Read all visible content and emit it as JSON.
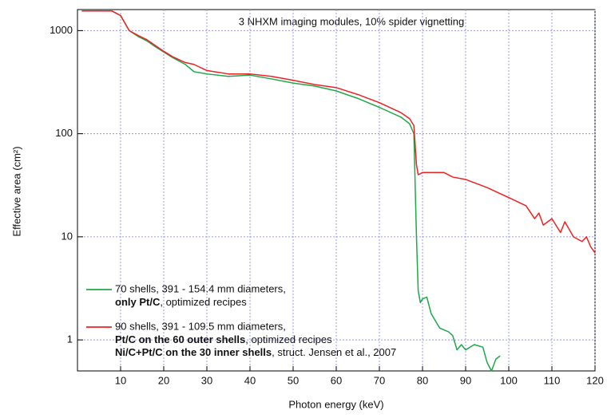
{
  "chart_data": {
    "type": "line",
    "title": "3 NHXM imaging modules, 10% spider vignetting",
    "xlabel": "Photon energy (keV)",
    "ylabel": "Effective area (cm²)",
    "yscale": "log",
    "grid": true,
    "xlim": [
      0,
      120
    ],
    "ylim": [
      0.5,
      1600
    ],
    "xticks": [
      10,
      20,
      30,
      40,
      50,
      60,
      70,
      80,
      90,
      100,
      110,
      120
    ],
    "yticks": [
      1,
      10,
      100,
      1000
    ],
    "legend": "lower left",
    "series": [
      {
        "name": "70 shells, 391 - 154.4 mm diameters,",
        "color": "#1fa84a",
        "notes": [
          [
            {
              "text": "only Pt/C",
              "bold": true
            },
            {
              "text": ", optimized recipes"
            }
          ]
        ],
        "x": [
          1,
          8,
          10,
          12,
          14,
          16,
          18,
          20,
          22,
          25,
          27,
          30,
          35,
          40,
          45,
          50,
          55,
          60,
          65,
          70,
          75,
          77,
          78,
          78.6,
          79,
          79.5,
          80,
          81,
          82,
          84,
          86,
          87,
          88,
          89,
          90,
          92,
          94,
          95,
          96,
          97,
          98
        ],
        "values": [
          1550,
          1550,
          1400,
          1000,
          880,
          800,
          700,
          620,
          550,
          470,
          400,
          380,
          360,
          370,
          340,
          310,
          290,
          260,
          220,
          180,
          145,
          125,
          100,
          10,
          3,
          2.3,
          2.5,
          2.6,
          1.8,
          1.3,
          1.2,
          1.1,
          0.8,
          0.9,
          0.8,
          0.9,
          0.85,
          0.6,
          0.5,
          0.65,
          0.7
        ]
      },
      {
        "name": "90 shells, 391 - 109.5 mm diameters,",
        "color": "#ee2222",
        "notes": [
          [
            {
              "text": "Pt/C on the 60 outer shells",
              "bold": true
            },
            {
              "text": ", optimized recipes"
            }
          ],
          [
            {
              "text": "Ni/C+Pt/C on the 30 inner shells",
              "bold": true
            },
            {
              "text": ", struct. Jensen et al., 2007"
            }
          ]
        ],
        "x": [
          1,
          8,
          10,
          12,
          14,
          16,
          18,
          20,
          22,
          25,
          27,
          30,
          35,
          40,
          45,
          50,
          55,
          60,
          65,
          70,
          75,
          77,
          78,
          78.6,
          79,
          80,
          85,
          87,
          90,
          95,
          100,
          104,
          106,
          107,
          108,
          110,
          112,
          113,
          115,
          117,
          118,
          119,
          120
        ],
        "values": [
          1550,
          1550,
          1400,
          1000,
          900,
          820,
          720,
          630,
          560,
          490,
          470,
          410,
          380,
          380,
          360,
          330,
          300,
          280,
          240,
          200,
          160,
          140,
          120,
          50,
          40,
          42,
          42,
          38,
          36,
          30,
          24,
          20,
          15,
          17,
          13,
          15,
          11,
          14,
          10,
          9,
          10,
          8,
          7
        ]
      }
    ]
  }
}
